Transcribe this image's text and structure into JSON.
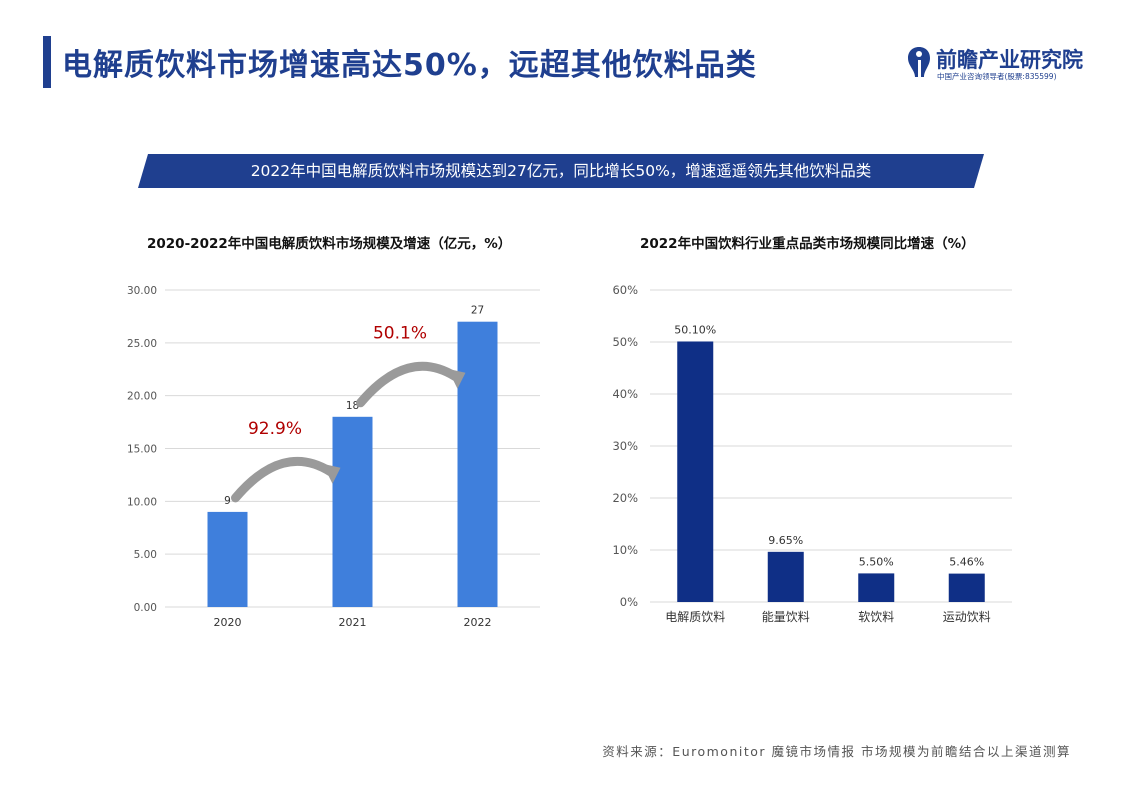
{
  "header": {
    "title": "电解质饮料市场增速高达50%，远超其他饮料品类",
    "logo_name": "前瞻产业研究院",
    "logo_subtitle": "中国产业咨询领导者(股票:835599)"
  },
  "banner": {
    "text": "2022年中国电解质饮料市场规模达到27亿元，同比增长50%，增速遥遥领先其他饮料品类"
  },
  "colors": {
    "brand": "#1f3f8f",
    "banner_bg": "#1f3f8f",
    "bar_light": "#3f7fdc",
    "bar_dark": "#0f2f86",
    "growth_label": "#b00000",
    "arrow": "#9a9a9a"
  },
  "chart_data": [
    {
      "type": "bar",
      "title": "2020-2022年中国电解质饮料市场规模及增速（亿元，%）",
      "categories": [
        "2020",
        "2021",
        "2022"
      ],
      "values": [
        9,
        18,
        27
      ],
      "value_labels": [
        "9",
        "18",
        "27"
      ],
      "yticks": [
        "0.00",
        "5.00",
        "10.00",
        "15.00",
        "20.00",
        "25.00",
        "30.00"
      ],
      "ylim": [
        0,
        30
      ],
      "grid": true,
      "xlabel": "",
      "ylabel": "",
      "annotations": [
        {
          "text": "92.9%",
          "from": "2020",
          "to": "2021"
        },
        {
          "text": "50.1%",
          "from": "2021",
          "to": "2022"
        }
      ]
    },
    {
      "type": "bar",
      "title": "2022年中国饮料行业重点品类市场规模同比增速（%）",
      "categories": [
        "电解质饮料",
        "能量饮料",
        "软饮料",
        "运动饮料"
      ],
      "values": [
        50.1,
        9.65,
        5.5,
        5.46
      ],
      "value_labels": [
        "50.10%",
        "9.65%",
        "5.50%",
        "5.46%"
      ],
      "yticks": [
        "0%",
        "10%",
        "20%",
        "30%",
        "40%",
        "50%",
        "60%"
      ],
      "ylim": [
        0,
        60
      ],
      "grid": true,
      "xlabel": "",
      "ylabel": ""
    }
  ],
  "footer": {
    "source": "资料来源：Euromonitor 魔镜市场情报 市场规模为前瞻结合以上渠道测算"
  }
}
